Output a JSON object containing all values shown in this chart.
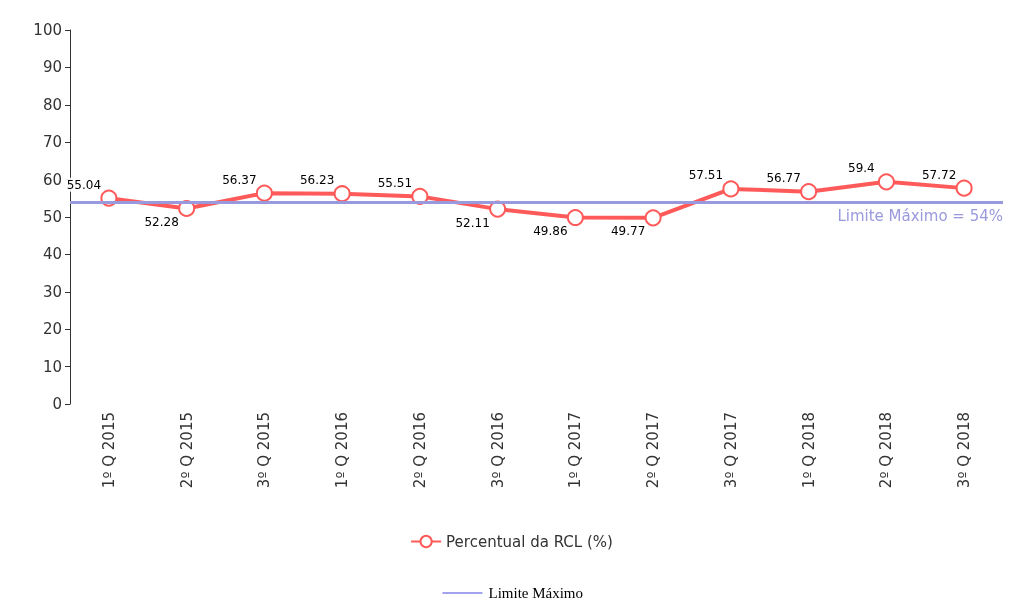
{
  "chart_data": {
    "type": "line",
    "categories": [
      "1º Q 2015",
      "2º Q 2015",
      "3º Q 2015",
      "1º Q 2016",
      "2º Q 2016",
      "3º Q 2016",
      "1º Q 2017",
      "2º Q 2017",
      "3º Q 2017",
      "1º Q 2018",
      "2º Q 2018",
      "3º Q 2018"
    ],
    "series": [
      {
        "name": "Percentual da RCL (%)",
        "color": "#ff5a5a",
        "values": [
          55.04,
          52.28,
          56.37,
          56.23,
          55.51,
          52.11,
          49.86,
          49.77,
          57.51,
          56.77,
          59.4,
          57.72
        ]
      }
    ],
    "ylim": [
      0,
      100
    ],
    "yticks": [
      0,
      10,
      20,
      30,
      40,
      50,
      60,
      70,
      80,
      90,
      100
    ],
    "grid": false,
    "legend": "bottom",
    "marker": "circle",
    "line_style": "solid",
    "data_labels": true,
    "ref_lines": [
      {
        "axis": "y",
        "value": 54,
        "label": "Limite Máximo = 54%",
        "color": "#9999dd"
      }
    ],
    "annotations": [
      "Limite Máximo"
    ]
  }
}
